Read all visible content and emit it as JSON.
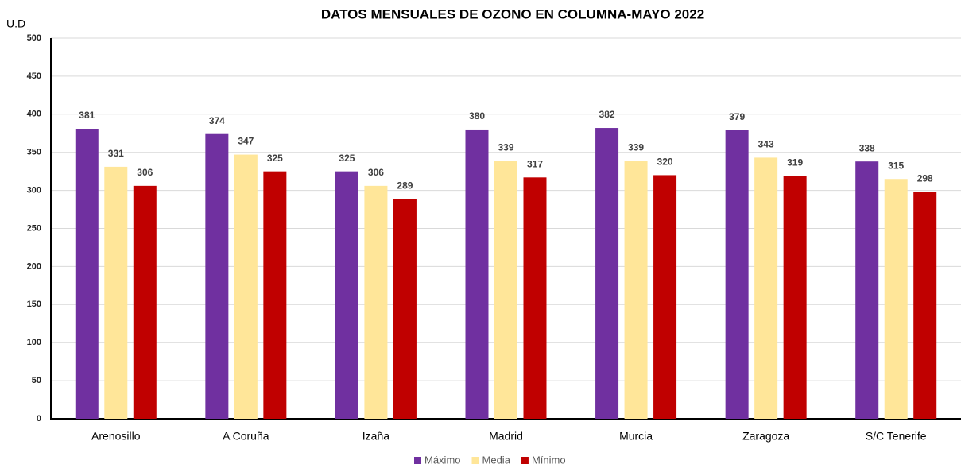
{
  "chart_data": {
    "type": "bar",
    "title": "DATOS MENSUALES DE OZONO EN COLUMNA-MAYO 2022",
    "y_label": "U.D",
    "categories": [
      "Arenosillo",
      "A Coruña",
      "Izaña",
      "Madrid",
      "Murcia",
      "Zaragoza",
      "S/C Tenerife"
    ],
    "series": [
      {
        "name": "Máximo",
        "color": "#7030a0",
        "values": [
          381,
          374,
          325,
          380,
          382,
          379,
          338
        ]
      },
      {
        "name": "Media",
        "color": "#ffe699",
        "values": [
          331,
          347,
          306,
          339,
          339,
          343,
          315
        ]
      },
      {
        "name": "Mínimo",
        "color": "#c00000",
        "values": [
          306,
          325,
          289,
          317,
          320,
          319,
          298
        ]
      }
    ],
    "ylim": [
      0,
      500
    ],
    "yticks": [
      0,
      50,
      100,
      150,
      200,
      250,
      300,
      350,
      400,
      450,
      500
    ],
    "grid": true,
    "legend": "bottom"
  }
}
